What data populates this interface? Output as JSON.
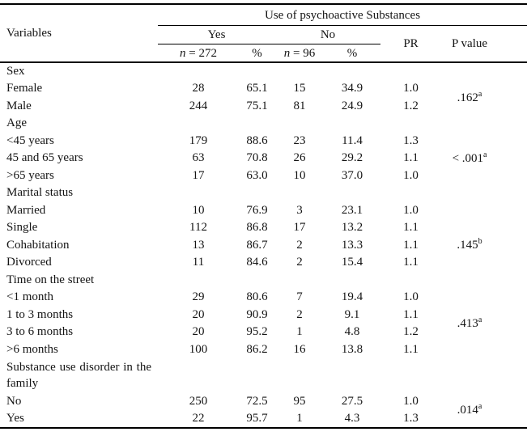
{
  "colors": {
    "text": "#141414",
    "rule": "#000000",
    "background": "#ffffff"
  },
  "header": {
    "variables_label": "Variables",
    "span_title": "Use of psychoactive Substances",
    "yes": {
      "label": "Yes",
      "n_italic": "n",
      "n_rest": " = 272",
      "pct": "%"
    },
    "no": {
      "label": "No",
      "n_italic": "n",
      "n_rest": " = 96",
      "pct": "%"
    },
    "pr_label": "PR",
    "pvalue_label": "P value"
  },
  "rows": [
    {
      "type": "group",
      "label": "Sex"
    },
    {
      "type": "data",
      "label": "Female",
      "yes_n": "28",
      "yes_pct": "65.1",
      "no_n": "15",
      "no_pct": "34.9",
      "pr": "1.0",
      "p": {
        "text": ".162",
        "sup": "a",
        "rowspan": 2
      }
    },
    {
      "type": "data",
      "label": "Male",
      "yes_n": "244",
      "yes_pct": "75.1",
      "no_n": "81",
      "no_pct": "24.9",
      "pr": "1.2"
    },
    {
      "type": "group",
      "label": "Age"
    },
    {
      "type": "data",
      "label": "<45 years",
      "yes_n": "179",
      "yes_pct": "88.6",
      "no_n": "23",
      "no_pct": "11.4",
      "pr": "1.3",
      "p": {
        "text": "< .001",
        "sup": "a",
        "rowspan": 3
      }
    },
    {
      "type": "data",
      "label": "45 and 65 years",
      "yes_n": "63",
      "yes_pct": "70.8",
      "no_n": "26",
      "no_pct": "29.2",
      "pr": "1.1"
    },
    {
      "type": "data",
      "label": ">65 years",
      "yes_n": "17",
      "yes_pct": "63.0",
      "no_n": "10",
      "no_pct": "37.0",
      "pr": "1.0"
    },
    {
      "type": "group",
      "label": "Marital status"
    },
    {
      "type": "data",
      "label": "Married",
      "yes_n": "10",
      "yes_pct": "76.9",
      "no_n": "3",
      "no_pct": "23.1",
      "pr": "1.0"
    },
    {
      "type": "data",
      "label": "Single",
      "yes_n": "112",
      "yes_pct": "86.8",
      "no_n": "17",
      "no_pct": "13.2",
      "pr": "1.1"
    },
    {
      "type": "data",
      "label": "Cohabitation",
      "yes_n": "13",
      "yes_pct": "86.7",
      "no_n": "2",
      "no_pct": "13.3",
      "pr": "1.1",
      "p": {
        "text": ".145",
        "sup": "b",
        "rowspan": 1
      }
    },
    {
      "type": "data",
      "label": "Divorced",
      "yes_n": "11",
      "yes_pct": "84.6",
      "no_n": "2",
      "no_pct": "15.4",
      "pr": "1.1"
    },
    {
      "type": "group",
      "label": "Time on the street"
    },
    {
      "type": "data",
      "label": "<1 month",
      "yes_n": "29",
      "yes_pct": "80.6",
      "no_n": "7",
      "no_pct": "19.4",
      "pr": "1.0",
      "p": {
        "text": ".413",
        "sup": "a",
        "rowspan": 4
      }
    },
    {
      "type": "data",
      "label": "1 to 3 months",
      "yes_n": "20",
      "yes_pct": "90.9",
      "no_n": "2",
      "no_pct": "9.1",
      "pr": "1.1"
    },
    {
      "type": "data",
      "label": "3 to 6 months",
      "yes_n": "20",
      "yes_pct": "95.2",
      "no_n": "1",
      "no_pct": "4.8",
      "pr": "1.2"
    },
    {
      "type": "data",
      "label": ">6 months",
      "yes_n": "100",
      "yes_pct": "86.2",
      "no_n": "16",
      "no_pct": "13.8",
      "pr": "1.1"
    },
    {
      "type": "group",
      "label": "Substance use disorder in the family",
      "wrap": true
    },
    {
      "type": "data",
      "label": "No",
      "yes_n": "250",
      "yes_pct": "72.5",
      "no_n": "95",
      "no_pct": "27.5",
      "pr": "1.0",
      "p": {
        "text": ".014",
        "sup": "a",
        "rowspan": 2
      }
    },
    {
      "type": "data",
      "label": "Yes",
      "yes_n": "22",
      "yes_pct": "95.7",
      "no_n": "1",
      "no_pct": "4.3",
      "pr": "1.3"
    }
  ]
}
